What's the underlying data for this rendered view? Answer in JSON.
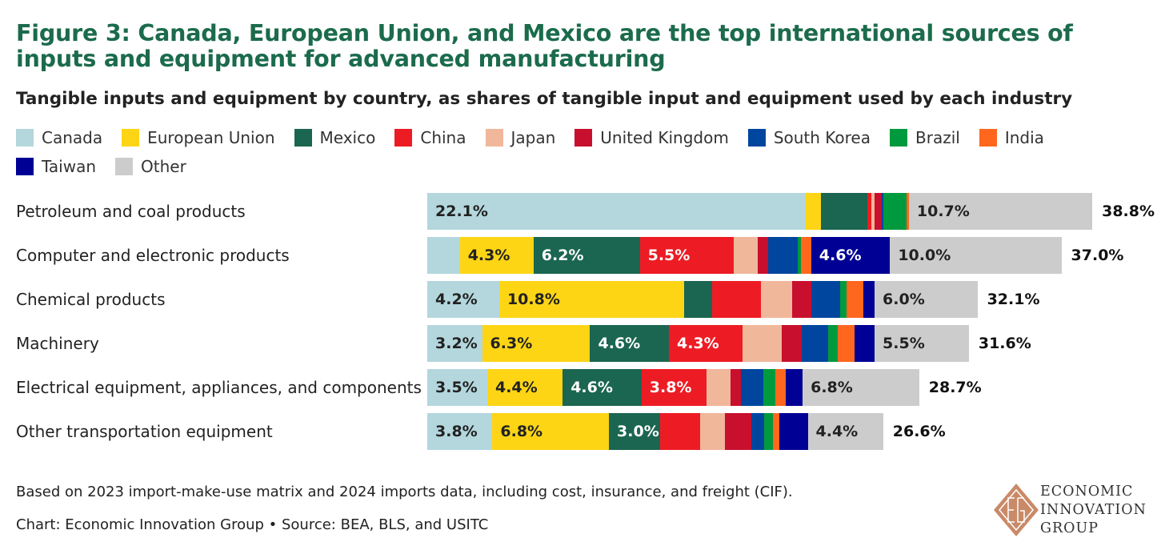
{
  "title": "Figure 3: Canada, European Union, and Mexico are the top international sources of inputs and equipment for advanced manufacturing",
  "chart_data": {
    "type": "bar",
    "orientation": "horizontal-stacked",
    "title": "Figure 3: Canada, European Union, and Mexico are the top international sources of inputs and equipment for advanced manufacturing",
    "subtitle": "Tangible inputs and equipment by country, as shares of tangible input and equipment used by each industry",
    "unit": "%",
    "legend_position": "top-left",
    "series": [
      {
        "name": "Canada",
        "color": "#b3d7dd"
      },
      {
        "name": "European Union",
        "color": "#fdd515"
      },
      {
        "name": "Mexico",
        "color": "#1b6650"
      },
      {
        "name": "China",
        "color": "#ed1c24"
      },
      {
        "name": "Japan",
        "color": "#f0b79a"
      },
      {
        "name": "United Kingdom",
        "color": "#c8102e"
      },
      {
        "name": "South Korea",
        "color": "#00469e"
      },
      {
        "name": "Brazil",
        "color": "#009a3e"
      },
      {
        "name": "India",
        "color": "#ff671f"
      },
      {
        "name": "Taiwan",
        "color": "#000095"
      },
      {
        "name": "Other",
        "color": "#cccccc"
      }
    ],
    "rows": [
      {
        "category": "Petroleum and coal products",
        "values": [
          22.1,
          0.85,
          2.75,
          0.2,
          0.2,
          0.4,
          0.1,
          1.35,
          0.15,
          0,
          10.7
        ],
        "total": "38.8%",
        "total_value": 38.8
      },
      {
        "category": "Computer and electronic products",
        "values": [
          1.9,
          4.3,
          6.2,
          5.5,
          1.4,
          0.6,
          1.7,
          0.2,
          0.6,
          4.6,
          10.0
        ],
        "total": "37.0%",
        "total_value": 37.0
      },
      {
        "category": "Chemical products",
        "values": [
          4.2,
          10.8,
          1.6,
          2.85,
          1.85,
          1.1,
          1.7,
          0.35,
          1.0,
          0.65,
          6.0
        ],
        "total": "32.1%",
        "total_value": 32.1
      },
      {
        "category": "Machinery",
        "values": [
          3.2,
          6.3,
          4.6,
          4.3,
          2.3,
          1.15,
          1.55,
          0.55,
          1.0,
          1.15,
          5.5
        ],
        "total": "31.6%",
        "total_value": 31.6
      },
      {
        "category": "Electrical equipment, appliances, and components",
        "values": [
          3.5,
          4.4,
          4.6,
          3.8,
          1.4,
          0.6,
          1.3,
          0.7,
          0.6,
          1.0,
          6.8
        ],
        "total": "28.7%",
        "total_value": 28.7
      },
      {
        "category": "Other transportation equipment",
        "values": [
          3.8,
          6.8,
          3.0,
          2.3,
          1.45,
          1.55,
          0.75,
          0.5,
          0.4,
          1.65,
          4.4
        ],
        "total": "26.6%",
        "total_value": 26.6
      }
    ],
    "label_threshold": 3.0
  },
  "footer": {
    "note": "Based on 2023 import-make-use matrix and 2024 imports data, including cost, insurance, and freight (CIF).",
    "source": "Chart: Economic Innovation Group • Source: BEA, BLS, and USITC"
  },
  "logo": {
    "line1": "ECONOMIC",
    "line2": "INNOVATION",
    "line3": "GROUP",
    "color": "#c98a68"
  }
}
